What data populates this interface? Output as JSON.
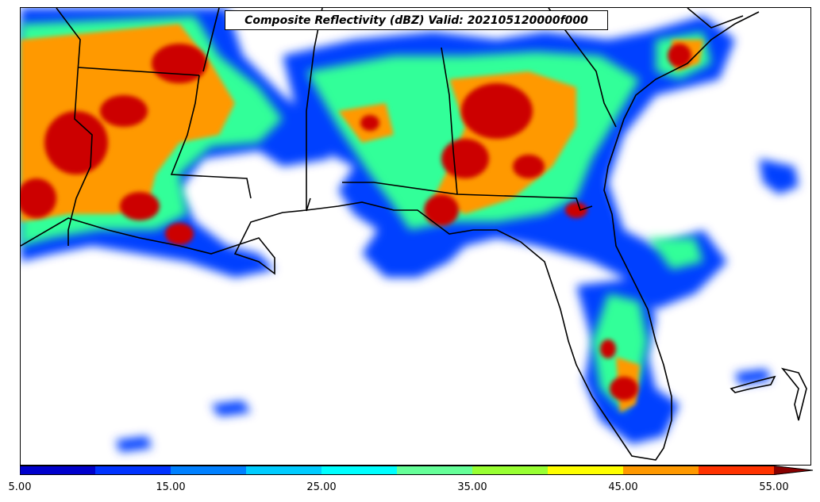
{
  "title": "Composite Reflectivity (dBZ) Valid: 202105120000f000",
  "colorbar": {
    "bins": [
      {
        "from": 5,
        "to": 10,
        "color": "#0000cc"
      },
      {
        "from": 10,
        "to": 15,
        "color": "#0033ff"
      },
      {
        "from": 15,
        "to": 20,
        "color": "#0080ff"
      },
      {
        "from": 20,
        "to": 25,
        "color": "#00ccff"
      },
      {
        "from": 25,
        "to": 30,
        "color": "#00ffff"
      },
      {
        "from": 30,
        "to": 35,
        "color": "#66ff99"
      },
      {
        "from": 35,
        "to": 40,
        "color": "#99ff33"
      },
      {
        "from": 40,
        "to": 45,
        "color": "#ffff00"
      },
      {
        "from": 45,
        "to": 50,
        "color": "#ff9900"
      },
      {
        "from": 50,
        "to": 55,
        "color": "#ff3300"
      },
      {
        "from": 55,
        "to": 60,
        "color": "#cc0000"
      }
    ],
    "extend": "max",
    "extend_color": "#880000",
    "tick_labels": [
      "5.00",
      "15.00",
      "25.00",
      "35.00",
      "45.00",
      "55.00"
    ],
    "tick_values": [
      5,
      15,
      25,
      35,
      45,
      55
    ],
    "range": [
      5,
      57.5
    ]
  },
  "map": {
    "region": "US Southeast / Gulf Coast",
    "colors": {
      "coastline": "#000000",
      "borders": "#000000",
      "background": "#ffffff"
    }
  }
}
